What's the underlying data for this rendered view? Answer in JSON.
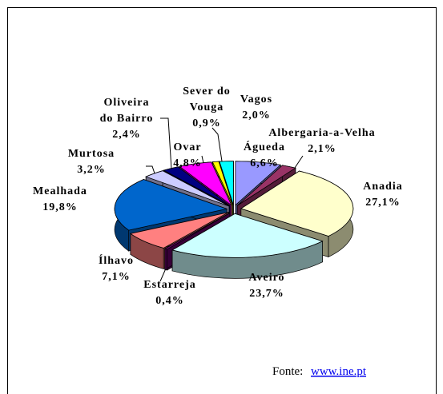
{
  "chart_data": {
    "type": "pie3d",
    "categories": [
      "Águeda",
      "Albergaria-a-Velha",
      "Anadia",
      "Aveiro",
      "Estarreja",
      "Ílhavo",
      "Mealhada",
      "Murtosa",
      "Oliveira do Bairro",
      "Ovar",
      "Sever do Vouga",
      "Vagos"
    ],
    "values": [
      6.6,
      2.1,
      27.1,
      23.7,
      0.4,
      7.1,
      19.8,
      3.2,
      2.4,
      4.8,
      0.9,
      2.0
    ],
    "value_labels": [
      "6,6%",
      "2,1%",
      "27,1%",
      "23,7%",
      "0,4%",
      "7,1%",
      "19,8%",
      "3,2%",
      "2,4%",
      "4,8%",
      "0,9%",
      "2,0%"
    ],
    "colors": [
      "#9999ff",
      "#993366",
      "#ffffcc",
      "#ccffff",
      "#660066",
      "#ff8080",
      "#0066cc",
      "#ccccff",
      "#000080",
      "#ff00ff",
      "#ffff00",
      "#00ffff"
    ]
  },
  "source": {
    "label": "Fonte:",
    "link": "www.ine.pt"
  }
}
